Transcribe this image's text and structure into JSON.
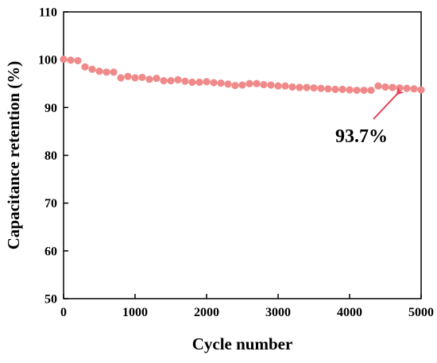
{
  "chart_data": {
    "type": "scatter",
    "title": "",
    "xlabel": "Cycle number",
    "ylabel": "Capacitance retention (%)",
    "xlim": [
      0,
      5000
    ],
    "ylim": [
      50,
      110
    ],
    "xticks": [
      0,
      1000,
      2000,
      3000,
      4000,
      5000
    ],
    "yticks": [
      50,
      60,
      70,
      80,
      90,
      100,
      110
    ],
    "grid": false,
    "marker_color": "#f08a8a",
    "annotation_color": "#e8435a",
    "series": [
      {
        "x": [
          0,
          100,
          200,
          300,
          400,
          500,
          600,
          700,
          800,
          900,
          1000,
          1100,
          1200,
          1300,
          1400,
          1500,
          1600,
          1700,
          1800,
          1900,
          2000,
          2100,
          2200,
          2300,
          2400,
          2500,
          2600,
          2700,
          2800,
          2900,
          3000,
          3100,
          3200,
          3300,
          3400,
          3500,
          3600,
          3700,
          3800,
          3900,
          4000,
          4100,
          4200,
          4300,
          4400,
          4500,
          4600,
          4700,
          4800,
          4900,
          5000
        ],
        "y": [
          100.1,
          99.9,
          99.8,
          98.5,
          98.0,
          97.6,
          97.4,
          97.4,
          96.2,
          96.5,
          96.2,
          96.3,
          95.9,
          96.1,
          95.6,
          95.6,
          95.8,
          95.5,
          95.3,
          95.3,
          95.4,
          95.2,
          95.1,
          94.9,
          94.6,
          94.7,
          95.0,
          95.0,
          94.8,
          94.7,
          94.5,
          94.5,
          94.3,
          94.2,
          94.2,
          94.1,
          94.0,
          93.9,
          93.8,
          93.8,
          93.7,
          93.6,
          93.6,
          93.6,
          94.5,
          94.3,
          94.2,
          94.1,
          94.0,
          93.9,
          93.7
        ]
      }
    ],
    "annotations": [
      {
        "text": "93.7%",
        "x": 5000,
        "y": 93.7
      }
    ]
  }
}
